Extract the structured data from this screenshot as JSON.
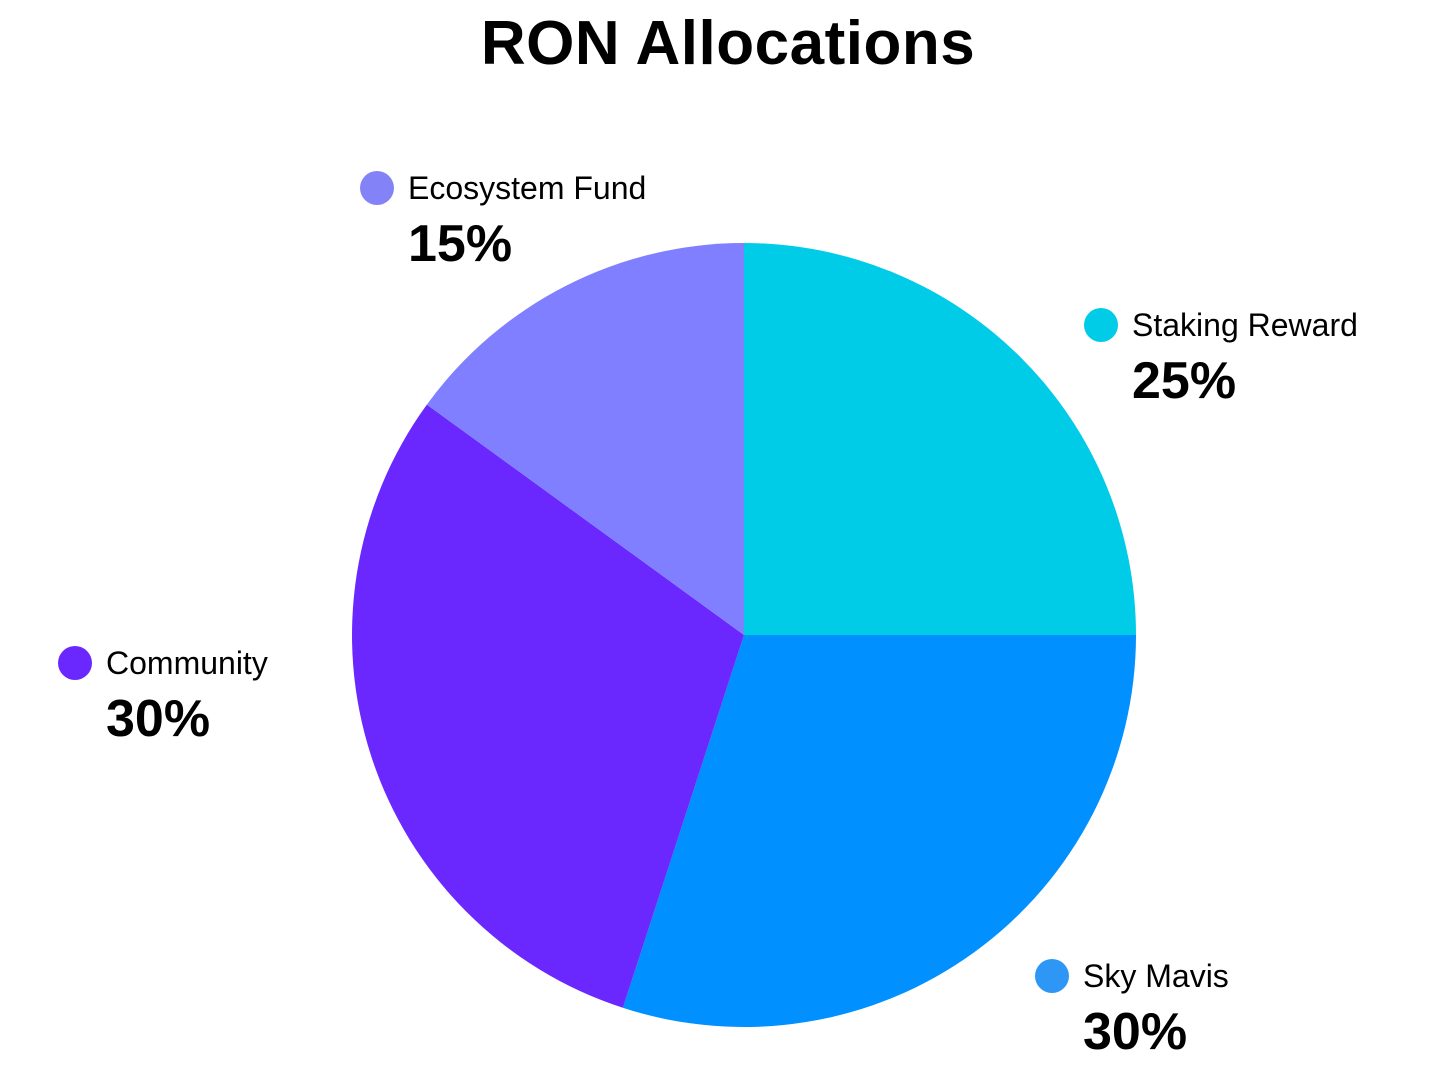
{
  "chart_data": {
    "type": "pie",
    "title": "RON Allocations",
    "slices": [
      {
        "label": "Staking Reward",
        "value": 25,
        "display": "25%",
        "color": "#00CCE8"
      },
      {
        "label": "Sky Mavis",
        "value": 30,
        "display": "30%",
        "color": "#0090FF"
      },
      {
        "label": "Community",
        "value": 30,
        "display": "30%",
        "color": "#6A28FF"
      },
      {
        "label": "Ecosystem Fund",
        "value": 15,
        "display": "15%",
        "color": "#7F7FFF"
      }
    ],
    "legend_colors": {
      "Staking Reward": "#00CCE8",
      "Sky Mavis": "#2E96F5",
      "Community": "#6A28FF",
      "Ecosystem Fund": "#8383F7"
    },
    "start_angle": "12 o'clock",
    "direction": "clockwise"
  }
}
